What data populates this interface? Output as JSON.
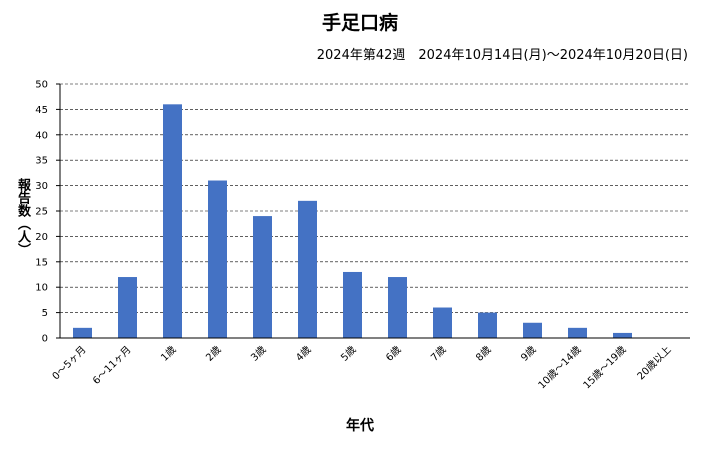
{
  "title": "手足口病",
  "subtitle": "2024年第42週　2024年10月14日(月)～2024年10月20日(日)",
  "chart_data": {
    "type": "bar",
    "title": "手足口病",
    "subtitle": "2024年第42週　2024年10月14日(月)～2024年10月20日(日)",
    "xlabel": "年代",
    "ylabel": "報告数（人）",
    "categories": [
      "0～5ヶ月",
      "6～11ヶ月",
      "1歳",
      "2歳",
      "3歳",
      "4歳",
      "5歳",
      "6歳",
      "7歳",
      "8歳",
      "9歳",
      "10歳～14歳",
      "15歳～19歳",
      "20歳以上"
    ],
    "values": [
      2,
      12,
      46,
      31,
      24,
      27,
      13,
      12,
      6,
      5,
      3,
      2,
      1,
      0
    ],
    "ylim": [
      0,
      50
    ],
    "yticks": [
      0,
      5,
      10,
      15,
      20,
      25,
      30,
      35,
      40,
      45,
      50
    ],
    "grid": "horizontal dashed",
    "bar_color": "#4472c4"
  }
}
